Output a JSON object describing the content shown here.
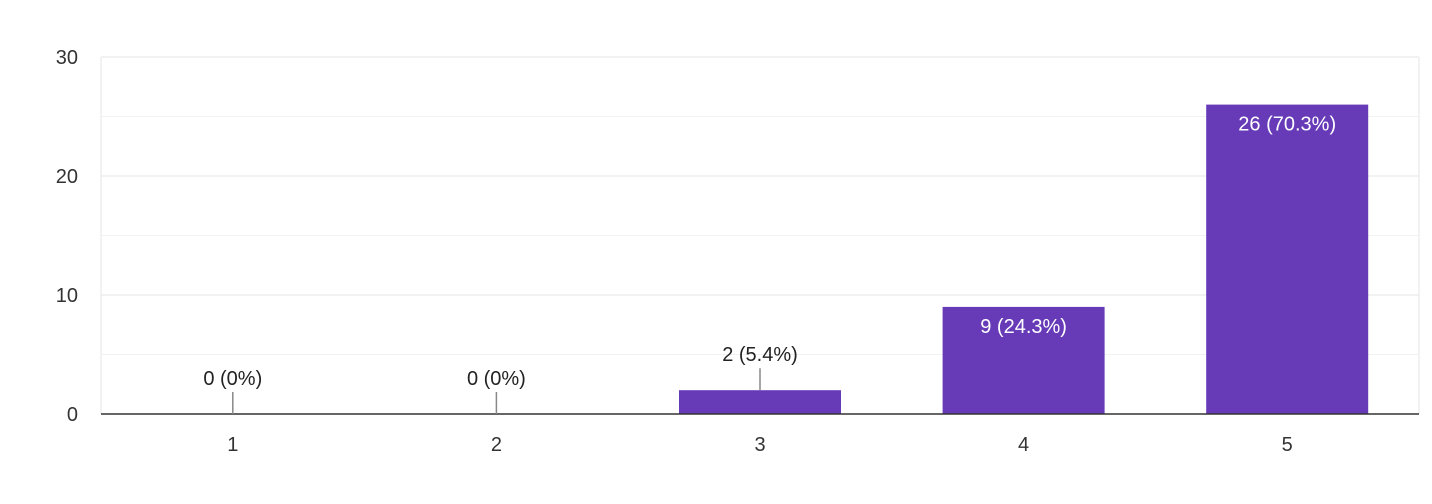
{
  "chart_data": {
    "type": "bar",
    "categories": [
      "1",
      "2",
      "3",
      "4",
      "5"
    ],
    "values": [
      0,
      0,
      2,
      9,
      26
    ],
    "data_labels": [
      "0 (0%)",
      "0 (0%)",
      "2 (5.4%)",
      "9 (24.3%)",
      "26 (70.3%)"
    ],
    "title": "",
    "xlabel": "",
    "ylabel": "",
    "ylim": [
      0,
      30
    ],
    "yticks": [
      0,
      10,
      20,
      30
    ],
    "grid": true,
    "colors": {
      "bar": "#673ab7",
      "grid_major": "#e6e6e6",
      "grid_minor": "#f2f2f2",
      "axis": "#333333",
      "label_outside": "#222222",
      "label_inside": "#ffffff",
      "leader": "#888888"
    }
  }
}
